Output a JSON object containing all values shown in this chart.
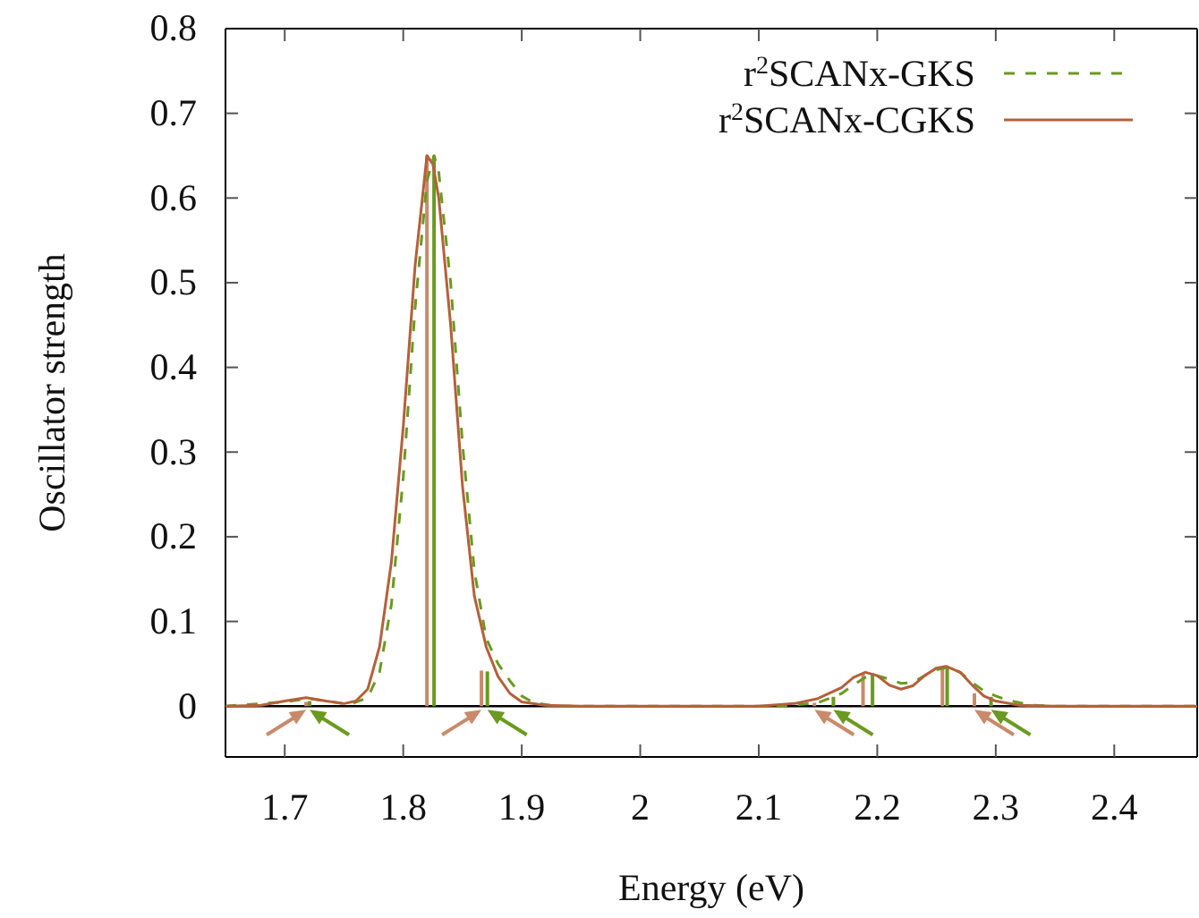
{
  "chart_data": {
    "type": "line",
    "xlabel": "Energy (eV)",
    "ylabel": "Oscillator strength",
    "xlim": [
      1.65,
      2.47
    ],
    "ylim": [
      -0.06,
      0.8
    ],
    "xticks": [
      1.7,
      1.8,
      1.9,
      2,
      2.1,
      2.2,
      2.3,
      2.4
    ],
    "yticks": [
      0,
      0.1,
      0.2,
      0.3,
      0.4,
      0.5,
      0.6,
      0.7,
      0.8
    ],
    "grid": false,
    "ref_lines": [
      {
        "axis": "y",
        "value": 0,
        "color": "#000000"
      }
    ],
    "legend": "top right",
    "marker": "none",
    "series": [
      {
        "name": "r$^{2}$SCANx-GKS",
        "color": "#6a9a20",
        "line_style": "dashed",
        "x": [
          1.65,
          1.7,
          1.72,
          1.74,
          1.755,
          1.77,
          1.78,
          1.79,
          1.8,
          1.81,
          1.82,
          1.826,
          1.83,
          1.84,
          1.85,
          1.86,
          1.87,
          1.88,
          1.89,
          1.9,
          1.91,
          1.93,
          2.12,
          2.15,
          2.17,
          2.18,
          2.19,
          2.197,
          2.21,
          2.22,
          2.23,
          2.24,
          2.25,
          2.26,
          2.27,
          2.28,
          2.29,
          2.3,
          2.31,
          2.33,
          2.35,
          2.47
        ],
        "values": [
          0,
          0.005,
          0.009,
          0.005,
          0.002,
          0.01,
          0.04,
          0.12,
          0.27,
          0.47,
          0.62,
          0.65,
          0.63,
          0.5,
          0.31,
          0.16,
          0.08,
          0.05,
          0.03,
          0.012,
          0.004,
          0,
          0,
          0.004,
          0.015,
          0.025,
          0.034,
          0.037,
          0.032,
          0.027,
          0.028,
          0.036,
          0.043,
          0.046,
          0.04,
          0.028,
          0.018,
          0.012,
          0.007,
          0.001,
          0,
          0
        ]
      },
      {
        "name": "r$^{2}$SCANx-CGKS",
        "color": "#b5603a",
        "line_style": "solid",
        "x": [
          1.65,
          1.68,
          1.7,
          1.718,
          1.735,
          1.75,
          1.76,
          1.77,
          1.78,
          1.79,
          1.8,
          1.81,
          1.82,
          1.825,
          1.83,
          1.84,
          1.85,
          1.86,
          1.87,
          1.88,
          1.89,
          1.9,
          1.92,
          1.95,
          2.1,
          2.13,
          2.15,
          2.17,
          2.18,
          2.19,
          2.2,
          2.21,
          2.22,
          2.23,
          2.24,
          2.25,
          2.258,
          2.27,
          2.28,
          2.29,
          2.3,
          2.32,
          2.35,
          2.47
        ],
        "values": [
          0,
          0.001,
          0.006,
          0.01,
          0.006,
          0.003,
          0.006,
          0.02,
          0.07,
          0.17,
          0.33,
          0.52,
          0.65,
          0.64,
          0.6,
          0.45,
          0.26,
          0.13,
          0.07,
          0.035,
          0.015,
          0.005,
          0.001,
          0,
          0,
          0.003,
          0.009,
          0.022,
          0.034,
          0.04,
          0.036,
          0.025,
          0.02,
          0.024,
          0.036,
          0.045,
          0.047,
          0.04,
          0.025,
          0.012,
          0.006,
          0.001,
          0,
          0
        ]
      },
      {
        "type": "bar",
        "color": "#c98a6a",
        "x": [
          1.718,
          1.82,
          1.866,
          2.147,
          2.188,
          2.255,
          2.282
        ],
        "values": [
          0.005,
          0.65,
          0.042,
          0.004,
          0.039,
          0.045,
          0.015
        ]
      },
      {
        "type": "bar",
        "color": "#6a9a20",
        "x": [
          1.721,
          1.826,
          1.871,
          2.163,
          2.196,
          2.259,
          2.296
        ],
        "values": [
          0.006,
          0.65,
          0.041,
          0.011,
          0.039,
          0.046,
          0.011
        ]
      }
    ]
  }
}
